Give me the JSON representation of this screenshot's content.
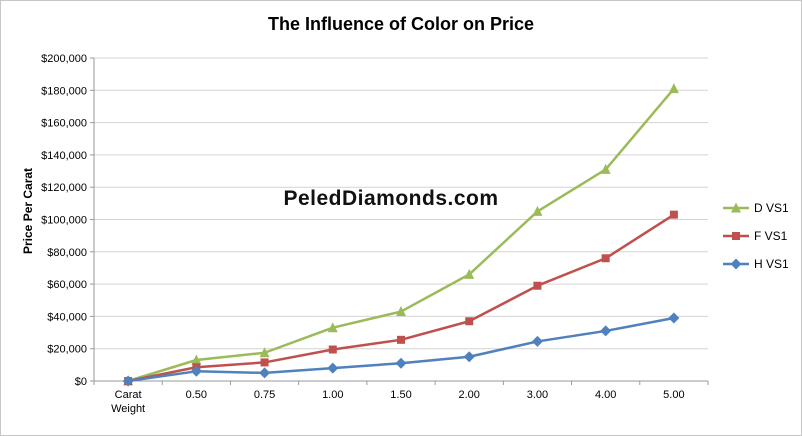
{
  "title": "The Influence of Color on Price",
  "watermark": "PeledDiamonds.com",
  "chart_data": {
    "type": "line",
    "title": "The Influence of Color on Price",
    "xlabel": "",
    "ylabel": "Price Per Carat",
    "ylim": [
      0,
      200000
    ],
    "ytick_step": 20000,
    "ytick_labels": [
      "$0",
      "$20,000",
      "$40,000",
      "$60,000",
      "$80,000",
      "$100,000",
      "$120,000",
      "$140,000",
      "$160,000",
      "$180,000",
      "$200,000"
    ],
    "categories": [
      "Carat\nWeight",
      "0.50",
      "0.75",
      "1.00",
      "1.50",
      "2.00",
      "3.00",
      "4.00",
      "5.00"
    ],
    "grid": true,
    "legend_position": "right",
    "series": [
      {
        "name": "D VS1",
        "color": "#9BBB59",
        "marker": "triangle",
        "values": [
          0,
          13000,
          17500,
          33000,
          43000,
          66000,
          105000,
          131000,
          181000
        ]
      },
      {
        "name": "F VS1",
        "color": "#C0504D",
        "marker": "square",
        "values": [
          0,
          8500,
          11500,
          19500,
          25500,
          37000,
          59000,
          76000,
          103000
        ]
      },
      {
        "name": "H VS1",
        "color": "#4F81BD",
        "marker": "diamond",
        "values": [
          0,
          6000,
          5000,
          8000,
          11000,
          15000,
          24500,
          31000,
          39000
        ]
      }
    ]
  }
}
